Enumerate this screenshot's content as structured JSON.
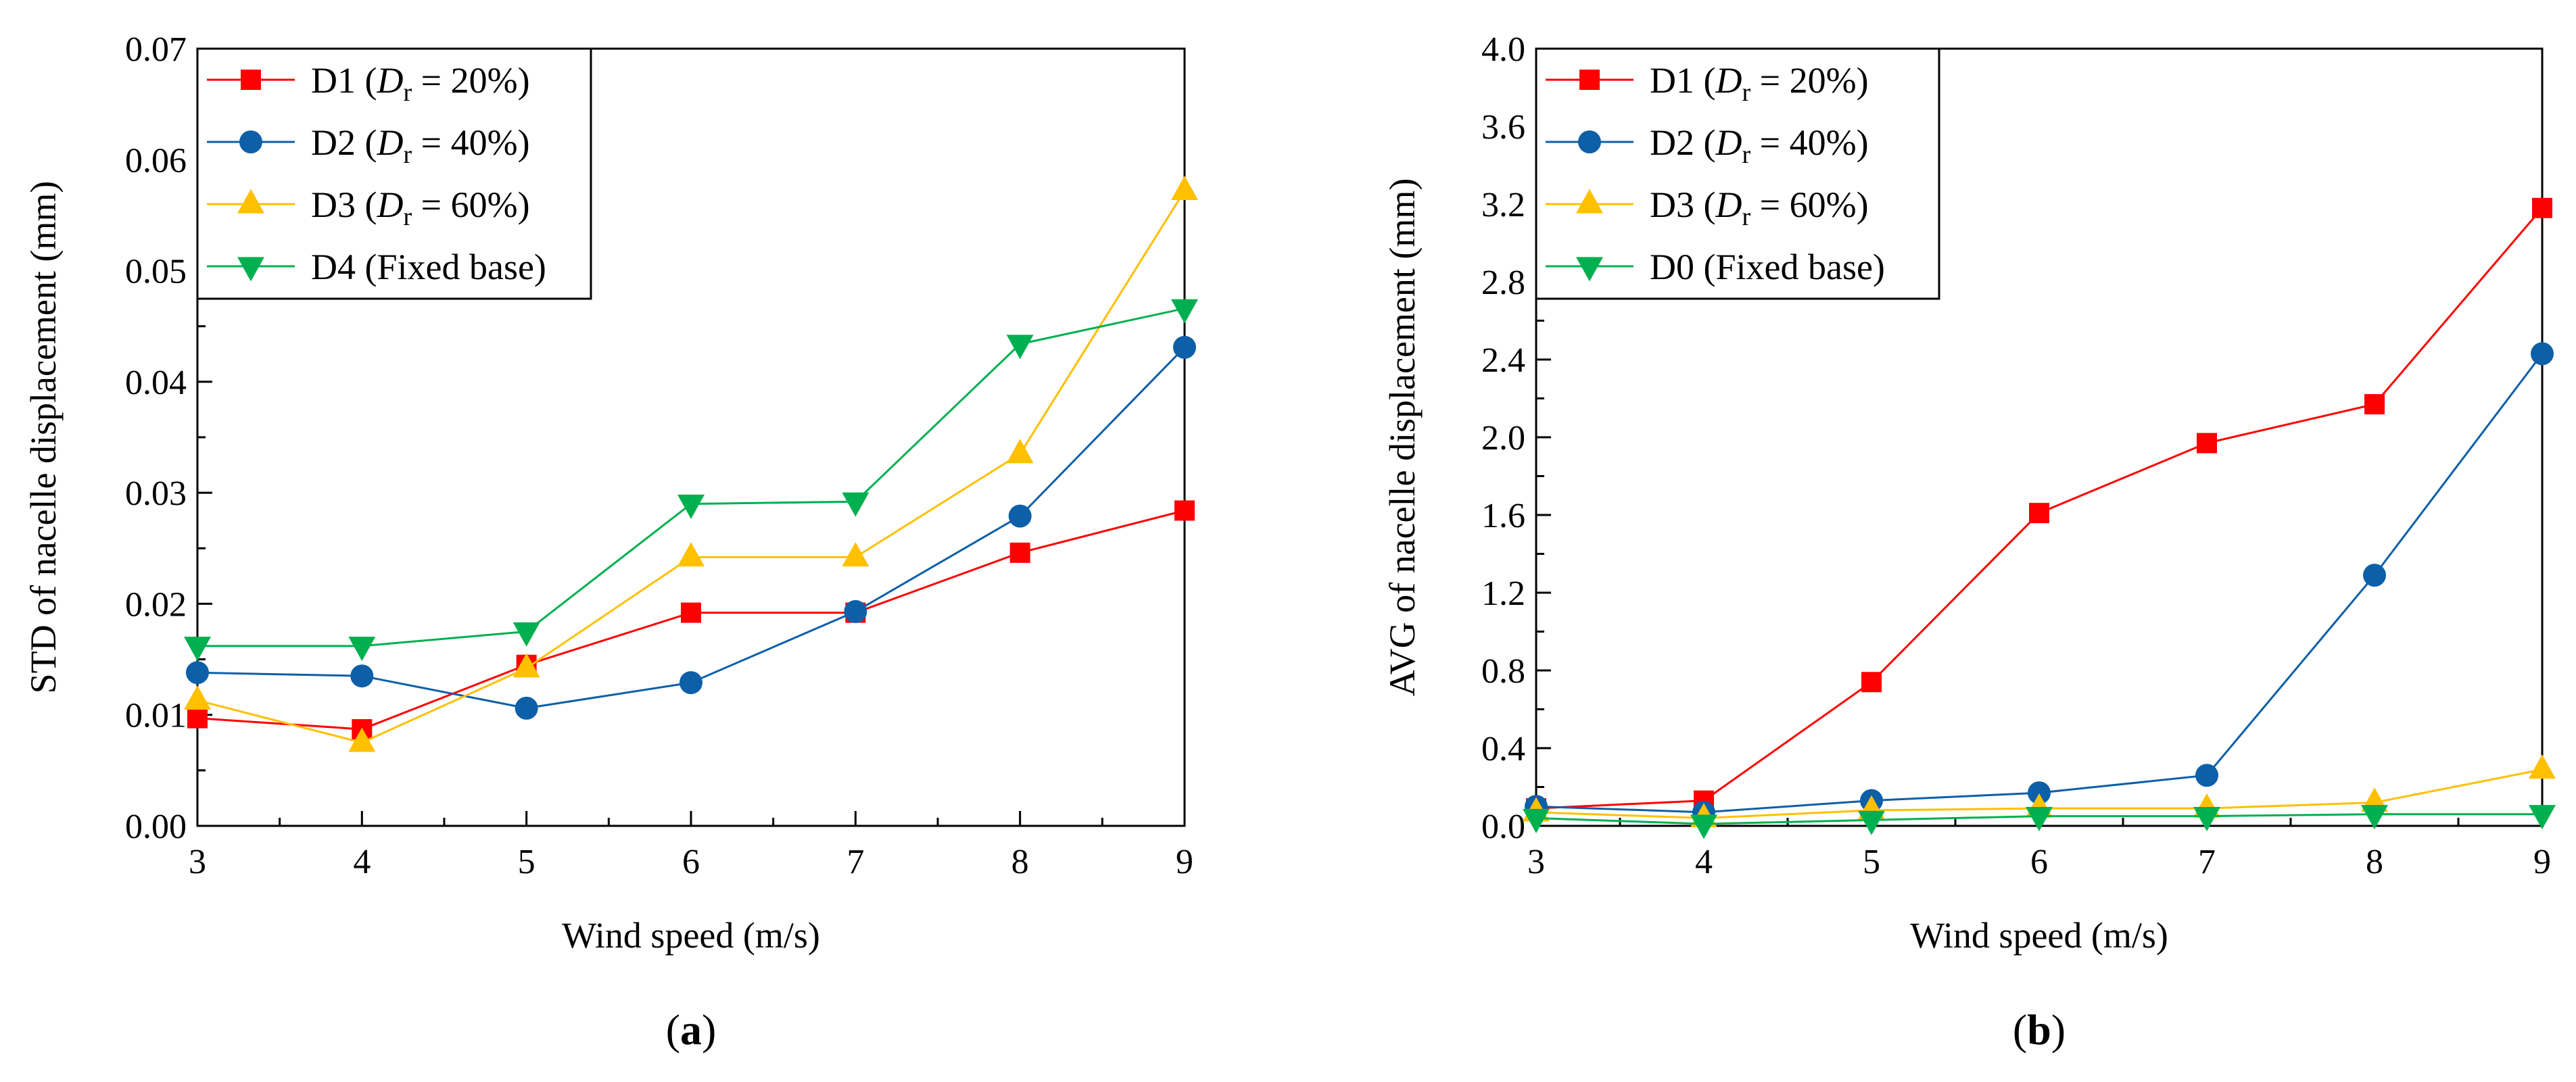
{
  "chart_data": [
    {
      "type": "line",
      "panel_label": "a",
      "xlabel": "Wind speed (m/s)",
      "ylabel": "STD of nacelle displacement (mm)",
      "xlim": [
        3,
        9
      ],
      "ylim": [
        0.0,
        0.07
      ],
      "xticks": [
        3,
        4,
        5,
        6,
        7,
        8,
        9
      ],
      "yticks": [
        "0.00",
        "0.01",
        "0.02",
        "0.03",
        "0.04",
        "0.05",
        "0.06",
        "0.07"
      ],
      "x": [
        3,
        4,
        5,
        6,
        7,
        8,
        9
      ],
      "legend_position": "top-left",
      "series": [
        {
          "name": "D1",
          "dr": "20%",
          "label_prefix": "D1 (",
          "label_suffix": " = 20%)",
          "italic_symbol": "D",
          "subscript": "r",
          "color": "#ff0000",
          "marker": "square",
          "values": [
            0.0097,
            0.0087,
            0.0145,
            0.0192,
            0.0192,
            0.0246,
            0.0284
          ]
        },
        {
          "name": "D2",
          "dr": "40%",
          "label_prefix": "D2 (",
          "label_suffix": " = 40%)",
          "italic_symbol": "D",
          "subscript": "r",
          "color": "#0d5fa8",
          "marker": "circle",
          "values": [
            0.0138,
            0.0135,
            0.0106,
            0.0129,
            0.0193,
            0.0279,
            0.0431
          ]
        },
        {
          "name": "D3",
          "dr": "60%",
          "label_prefix": "D3 (",
          "label_suffix": " = 60%)",
          "italic_symbol": "D",
          "subscript": "r",
          "color": "#ffc000",
          "marker": "triangle-up",
          "values": [
            0.0113,
            0.0075,
            0.0142,
            0.0242,
            0.0242,
            0.0335,
            0.0572
          ]
        },
        {
          "name": "D4",
          "label_full": "D4 (Fixed base)",
          "color": "#00b050",
          "marker": "triangle-down",
          "values": [
            0.0162,
            0.0162,
            0.0175,
            0.029,
            0.0292,
            0.0434,
            0.0466
          ]
        }
      ]
    },
    {
      "type": "line",
      "panel_label": "b",
      "xlabel": "Wind speed (m/s)",
      "ylabel": "AVG of nacelle displacement (mm)",
      "xlim": [
        3,
        9
      ],
      "ylim": [
        0.0,
        4.0
      ],
      "xticks": [
        3,
        4,
        5,
        6,
        7,
        8,
        9
      ],
      "yticks": [
        "0.0",
        "0.4",
        "0.8",
        "1.2",
        "1.6",
        "2.0",
        "2.4",
        "2.8",
        "3.2",
        "3.6",
        "4.0"
      ],
      "x": [
        3,
        4,
        5,
        6,
        7,
        8,
        9
      ],
      "legend_position": "top-left",
      "series": [
        {
          "name": "D1",
          "dr": "20%",
          "label_prefix": "D1 (",
          "label_suffix": " = 20%)",
          "italic_symbol": "D",
          "subscript": "r",
          "color": "#ff0000",
          "marker": "square",
          "values": [
            0.09,
            0.13,
            0.74,
            1.61,
            1.97,
            2.17,
            3.18
          ]
        },
        {
          "name": "D2",
          "dr": "40%",
          "label_prefix": "D2 (",
          "label_suffix": " = 40%)",
          "italic_symbol": "D",
          "subscript": "r",
          "color": "#0d5fa8",
          "marker": "circle",
          "values": [
            0.1,
            0.07,
            0.13,
            0.17,
            0.26,
            1.29,
            2.43
          ]
        },
        {
          "name": "D3",
          "dr": "60%",
          "label_prefix": "D3 (",
          "label_suffix": " = 60%)",
          "italic_symbol": "D",
          "subscript": "r",
          "color": "#ffc000",
          "marker": "triangle-up",
          "values": [
            0.07,
            0.04,
            0.08,
            0.09,
            0.09,
            0.12,
            0.29
          ]
        },
        {
          "name": "D0",
          "label_full": "D0 (Fixed base)",
          "color": "#00b050",
          "marker": "triangle-down",
          "values": [
            0.04,
            0.01,
            0.03,
            0.05,
            0.05,
            0.06,
            0.06
          ]
        }
      ]
    }
  ]
}
